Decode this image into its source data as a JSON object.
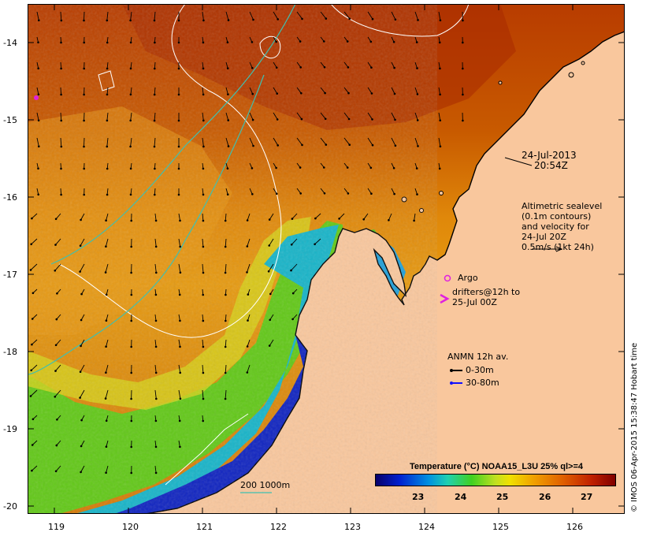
{
  "map": {
    "lon_range": [
      118.65,
      126.7
    ],
    "lat_range": [
      -20.1,
      -13.5
    ],
    "x_ticks": [
      "119",
      "120",
      "121",
      "122",
      "123",
      "124",
      "125",
      "126"
    ],
    "y_ticks": [
      "-14",
      "-15",
      "-16",
      "-17",
      "-18",
      "-19",
      "-20"
    ],
    "colors": {
      "land": "#f9c79d",
      "coast": "#000000",
      "contour_white": "#ffffff",
      "contour_cyan": "#3fc0b0",
      "argo": "#e020e0",
      "drifter": "#e020e0",
      "current_0_30": "#000000",
      "current_30_80": "#1010ff"
    }
  },
  "annotations": {
    "date_line1": "24-Jul-2013",
    "date_line2": "20:54Z",
    "alt_line1": "Altimetric sealevel",
    "alt_line2": "(0.1m contours)",
    "alt_line3": "and velocity for",
    "alt_line4": "24-Jul 20Z",
    "alt_line5": "0.5m/s (1kt 24h)",
    "argo_label": "Argo",
    "drifters_line1": "drifters@12h to",
    "drifters_line2": "25-Jul 00Z",
    "anmn_title": "ANMN 12h av.",
    "anmn_shallow": "0-30m",
    "anmn_deep": "30-80m",
    "isobath_label": "200  1000m"
  },
  "colorbar": {
    "title": "Temperature (°C) NOAA15_L3U 25% ql>=4",
    "ticks": [
      "23",
      "24",
      "25",
      "26",
      "27"
    ],
    "range": [
      22.0,
      27.7
    ]
  },
  "credit": "© IMOS 06-Apr-2015 15:38:47 Hobart time"
}
